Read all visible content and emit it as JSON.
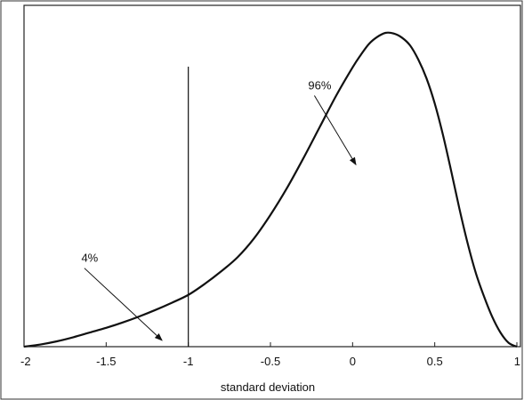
{
  "chart_data": {
    "type": "line",
    "title": "",
    "xlabel": "standard deviation",
    "ylabel": "",
    "xlim": [
      -2,
      1
    ],
    "ylim": [
      0,
      1
    ],
    "grid": false,
    "x_ticks": [
      -2,
      -1.5,
      -1,
      -0.5,
      0,
      0.5,
      1
    ],
    "x_tick_labels": [
      "-2",
      "-1.5",
      "-1",
      "-0.5",
      "0",
      "0.5",
      "1"
    ],
    "series": [
      {
        "x": [
          -2.0,
          -1.9,
          -1.8,
          -1.7,
          -1.6,
          -1.5,
          -1.4,
          -1.3,
          -1.2,
          -1.1,
          -1.0,
          -0.9,
          -0.8,
          -0.7,
          -0.6,
          -0.5,
          -0.4,
          -0.3,
          -0.2,
          -0.1,
          0.0,
          0.05,
          0.1,
          0.15,
          0.2,
          0.25,
          0.3,
          0.35,
          0.4,
          0.45,
          0.5,
          0.55,
          0.6,
          0.65,
          0.7,
          0.75,
          0.8,
          0.85,
          0.9,
          0.95,
          1.0
        ],
        "y": [
          0.0,
          0.007,
          0.017,
          0.03,
          0.045,
          0.06,
          0.077,
          0.096,
          0.117,
          0.14,
          0.165,
          0.2,
          0.24,
          0.285,
          0.345,
          0.42,
          0.505,
          0.6,
          0.7,
          0.8,
          0.89,
          0.93,
          0.965,
          0.987,
          1.0,
          0.998,
          0.985,
          0.96,
          0.915,
          0.855,
          0.775,
          0.675,
          0.56,
          0.44,
          0.33,
          0.235,
          0.16,
          0.095,
          0.045,
          0.012,
          0.0
        ]
      }
    ],
    "vertical_line_x": -1,
    "annotations": [
      {
        "text": "96%",
        "text_x": -0.2,
        "text_y": 0.82,
        "arrow_x": 0.02,
        "arrow_y": 0.58
      },
      {
        "text": "4%",
        "text_x": -1.6,
        "text_y": 0.27,
        "arrow_x": -1.16,
        "arrow_y": 0.02
      }
    ],
    "line_color": "#111111"
  }
}
